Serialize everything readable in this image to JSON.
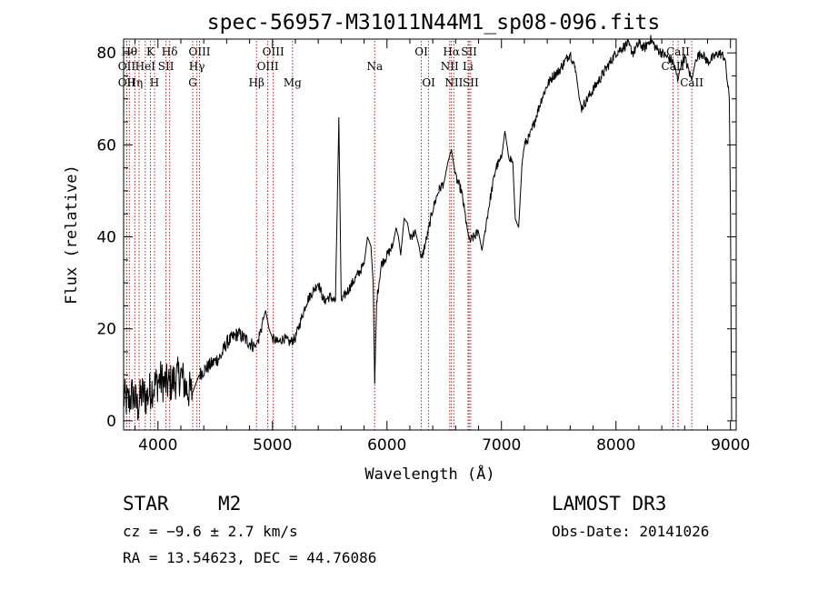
{
  "chart_data": {
    "type": "line",
    "title": "spec-56957-M31011N44M1_sp08-096.fits",
    "xlabel": "Wavelength (Å)",
    "ylabel": "Flux (relative)",
    "xlim": [
      3700,
      9050
    ],
    "ylim": [
      -2,
      83
    ],
    "x_ticks": [
      4000,
      5000,
      6000,
      7000,
      8000,
      9000
    ],
    "y_ticks": [
      0,
      20,
      40,
      60,
      80
    ],
    "grid": false,
    "series": [
      {
        "color": "#000000",
        "points": [
          [
            3700,
            5
          ],
          [
            3740,
            4
          ],
          [
            3780,
            6
          ],
          [
            3820,
            3
          ],
          [
            3860,
            6
          ],
          [
            3900,
            5
          ],
          [
            3940,
            7
          ],
          [
            3980,
            8
          ],
          [
            4020,
            9
          ],
          [
            4060,
            8
          ],
          [
            4100,
            8
          ],
          [
            4150,
            9
          ],
          [
            4200,
            10
          ],
          [
            4250,
            7
          ],
          [
            4300,
            6
          ],
          [
            4330,
            8
          ],
          [
            4360,
            10
          ],
          [
            4400,
            11
          ],
          [
            4450,
            12
          ],
          [
            4500,
            13
          ],
          [
            4550,
            14
          ],
          [
            4600,
            17
          ],
          [
            4650,
            18
          ],
          [
            4700,
            19
          ],
          [
            4750,
            18
          ],
          [
            4800,
            17
          ],
          [
            4850,
            16
          ],
          [
            4880,
            18
          ],
          [
            4920,
            22
          ],
          [
            4940,
            24
          ],
          [
            4970,
            20
          ],
          [
            5000,
            18
          ],
          [
            5050,
            17
          ],
          [
            5100,
            18
          ],
          [
            5150,
            17
          ],
          [
            5200,
            18
          ],
          [
            5250,
            22
          ],
          [
            5300,
            26
          ],
          [
            5350,
            28
          ],
          [
            5400,
            30
          ],
          [
            5450,
            26
          ],
          [
            5500,
            27
          ],
          [
            5550,
            26
          ],
          [
            5580,
            66
          ],
          [
            5600,
            26
          ],
          [
            5650,
            28
          ],
          [
            5700,
            30
          ],
          [
            5750,
            32
          ],
          [
            5800,
            34
          ],
          [
            5830,
            40
          ],
          [
            5860,
            38
          ],
          [
            5880,
            30
          ],
          [
            5893,
            8
          ],
          [
            5910,
            26
          ],
          [
            5950,
            34
          ],
          [
            6000,
            36
          ],
          [
            6050,
            38
          ],
          [
            6080,
            42
          ],
          [
            6100,
            40
          ],
          [
            6120,
            36
          ],
          [
            6150,
            44
          ],
          [
            6180,
            43
          ],
          [
            6200,
            40
          ],
          [
            6250,
            41
          ],
          [
            6280,
            38
          ],
          [
            6300,
            35
          ],
          [
            6350,
            40
          ],
          [
            6400,
            46
          ],
          [
            6450,
            50
          ],
          [
            6500,
            52
          ],
          [
            6530,
            56
          ],
          [
            6563,
            59
          ],
          [
            6600,
            53
          ],
          [
            6650,
            50
          ],
          [
            6700,
            42
          ],
          [
            6720,
            39
          ],
          [
            6760,
            40
          ],
          [
            6800,
            41
          ],
          [
            6830,
            37
          ],
          [
            6860,
            42
          ],
          [
            6900,
            48
          ],
          [
            6950,
            55
          ],
          [
            7000,
            57
          ],
          [
            7030,
            63
          ],
          [
            7060,
            58
          ],
          [
            7100,
            56
          ],
          [
            7120,
            44
          ],
          [
            7150,
            42
          ],
          [
            7180,
            56
          ],
          [
            7200,
            60
          ],
          [
            7250,
            62
          ],
          [
            7300,
            66
          ],
          [
            7350,
            70
          ],
          [
            7400,
            73
          ],
          [
            7450,
            75
          ],
          [
            7500,
            76
          ],
          [
            7550,
            78
          ],
          [
            7600,
            80
          ],
          [
            7650,
            76
          ],
          [
            7680,
            70
          ],
          [
            7700,
            68
          ],
          [
            7750,
            70
          ],
          [
            7800,
            72
          ],
          [
            7850,
            74
          ],
          [
            7900,
            76
          ],
          [
            7950,
            78
          ],
          [
            8000,
            80
          ],
          [
            8050,
            81
          ],
          [
            8100,
            82
          ],
          [
            8150,
            80
          ],
          [
            8200,
            82
          ],
          [
            8250,
            81
          ],
          [
            8300,
            83
          ],
          [
            8350,
            81
          ],
          [
            8400,
            80
          ],
          [
            8450,
            79
          ],
          [
            8500,
            78
          ],
          [
            8542,
            74
          ],
          [
            8560,
            77
          ],
          [
            8600,
            79
          ],
          [
            8662,
            74
          ],
          [
            8700,
            79
          ],
          [
            8750,
            80
          ],
          [
            8800,
            78
          ],
          [
            8850,
            79
          ],
          [
            8900,
            80
          ],
          [
            8950,
            79
          ],
          [
            8990,
            70
          ],
          [
            9000,
            45
          ],
          [
            9010,
            0
          ]
        ]
      }
    ],
    "lines": [
      {
        "wave": 3750,
        "row": 1,
        "label": "Hθ"
      },
      {
        "wave": 3727,
        "row": 2,
        "label": "OII"
      },
      {
        "wave": 3727,
        "row": 3,
        "label": "OII"
      },
      {
        "wave": 3798,
        "row": 3,
        "label": "Hη"
      },
      {
        "wave": 3835,
        "row": 1,
        "label": ""
      },
      {
        "wave": 3889,
        "row": 2,
        "label": "HeI"
      },
      {
        "wave": 3934,
        "row": 1,
        "label": "K"
      },
      {
        "wave": 3970,
        "row": 3,
        "label": "H"
      },
      {
        "wave": 4070,
        "row": 2,
        "label": "SII"
      },
      {
        "wave": 4102,
        "row": 1,
        "label": "Hδ"
      },
      {
        "wave": 4304,
        "row": 3,
        "label": "G"
      },
      {
        "wave": 4340,
        "row": 2,
        "label": "Hγ"
      },
      {
        "wave": 4363,
        "row": 1,
        "label": "OIII"
      },
      {
        "wave": 4861,
        "row": 3,
        "label": "Hβ"
      },
      {
        "wave": 4959,
        "row": 2,
        "label": "OIII"
      },
      {
        "wave": 5007,
        "row": 1,
        "label": "OIII"
      },
      {
        "wave": 5175,
        "row": 3,
        "label": "Mg"
      },
      {
        "wave": 5893,
        "row": 2,
        "label": "Na"
      },
      {
        "wave": 6300,
        "row": 1,
        "label": "OI"
      },
      {
        "wave": 6364,
        "row": 3,
        "label": "OI"
      },
      {
        "wave": 6548,
        "row": 2,
        "label": "NII"
      },
      {
        "wave": 6563,
        "row": 1,
        "label": "Hα"
      },
      {
        "wave": 6584,
        "row": 3,
        "label": "NII"
      },
      {
        "wave": 6708,
        "row": 2,
        "label": "Li"
      },
      {
        "wave": 6717,
        "row": 1,
        "label": "SII"
      },
      {
        "wave": 6731,
        "row": 3,
        "label": "SII"
      },
      {
        "wave": 8498,
        "row": 2,
        "label": "CaII"
      },
      {
        "wave": 8542,
        "row": 1,
        "label": "CaII"
      },
      {
        "wave": 8662,
        "row": 3,
        "label": "CaII"
      }
    ],
    "line_color": "#b22222"
  },
  "info": {
    "object_class": "STAR",
    "subclass": "M2",
    "cz": "cz = −9.6 ± 2.7 km/s",
    "coords": "RA =  13.54623, DEC =  44.76086",
    "survey": "LAMOST DR3",
    "obs_date": "Obs-Date: 20141026"
  }
}
